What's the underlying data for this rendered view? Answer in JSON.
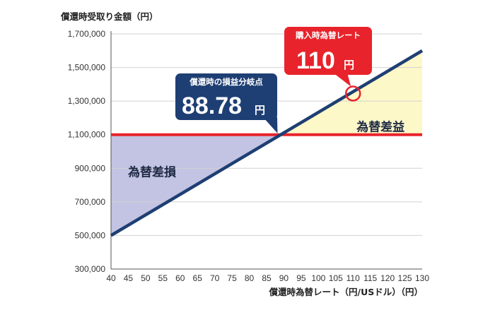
{
  "chart_data": {
    "type": "line",
    "ylabel": "償還時受取り金額（円）",
    "xlabel": "償還時為替レート（円/USドル）（円）",
    "x_ticks": [
      40,
      45,
      50,
      55,
      60,
      65,
      70,
      75,
      80,
      85,
      90,
      95,
      100,
      105,
      110,
      115,
      120,
      125,
      130
    ],
    "x_tick_labels": [
      "40",
      "45",
      "50",
      "55",
      "60",
      "65",
      "70",
      "75",
      "80",
      "85",
      "90",
      "95",
      "100",
      "105",
      "110",
      "115",
      "120",
      "125",
      "130"
    ],
    "y_ticks": [
      300000,
      500000,
      700000,
      900000,
      1100000,
      1300000,
      1500000,
      1700000
    ],
    "y_tick_labels": [
      "300,000",
      "500,000",
      "700,000",
      "900,000",
      "1,100,000",
      "1,300,000",
      "1,500,000",
      "1,700,000"
    ],
    "xlim": [
      40,
      130
    ],
    "ylim": [
      300000,
      1700000
    ],
    "grid": "horizontal",
    "series": [
      {
        "color": "#1e3f73",
        "points": [
          [
            40,
            500000
          ],
          [
            130,
            1600000
          ]
        ]
      }
    ],
    "reference_lines": [
      {
        "y": 1100000,
        "color": "#e8232b"
      }
    ],
    "regions": [
      {
        "label": "為替差損",
        "color": "#c3c3e3"
      },
      {
        "label": "為替差益",
        "color": "#fdf8c8"
      }
    ],
    "annotations": [
      {
        "title": "償還時の損益分岐点",
        "value": "88.78",
        "unit": "円",
        "x": 88.78,
        "y": 1100000,
        "color": "#1e3f73"
      },
      {
        "title": "購入時為替レート",
        "value": "110",
        "unit": "円",
        "x": 110,
        "y": 1345000,
        "color": "#e8232b"
      }
    ]
  }
}
